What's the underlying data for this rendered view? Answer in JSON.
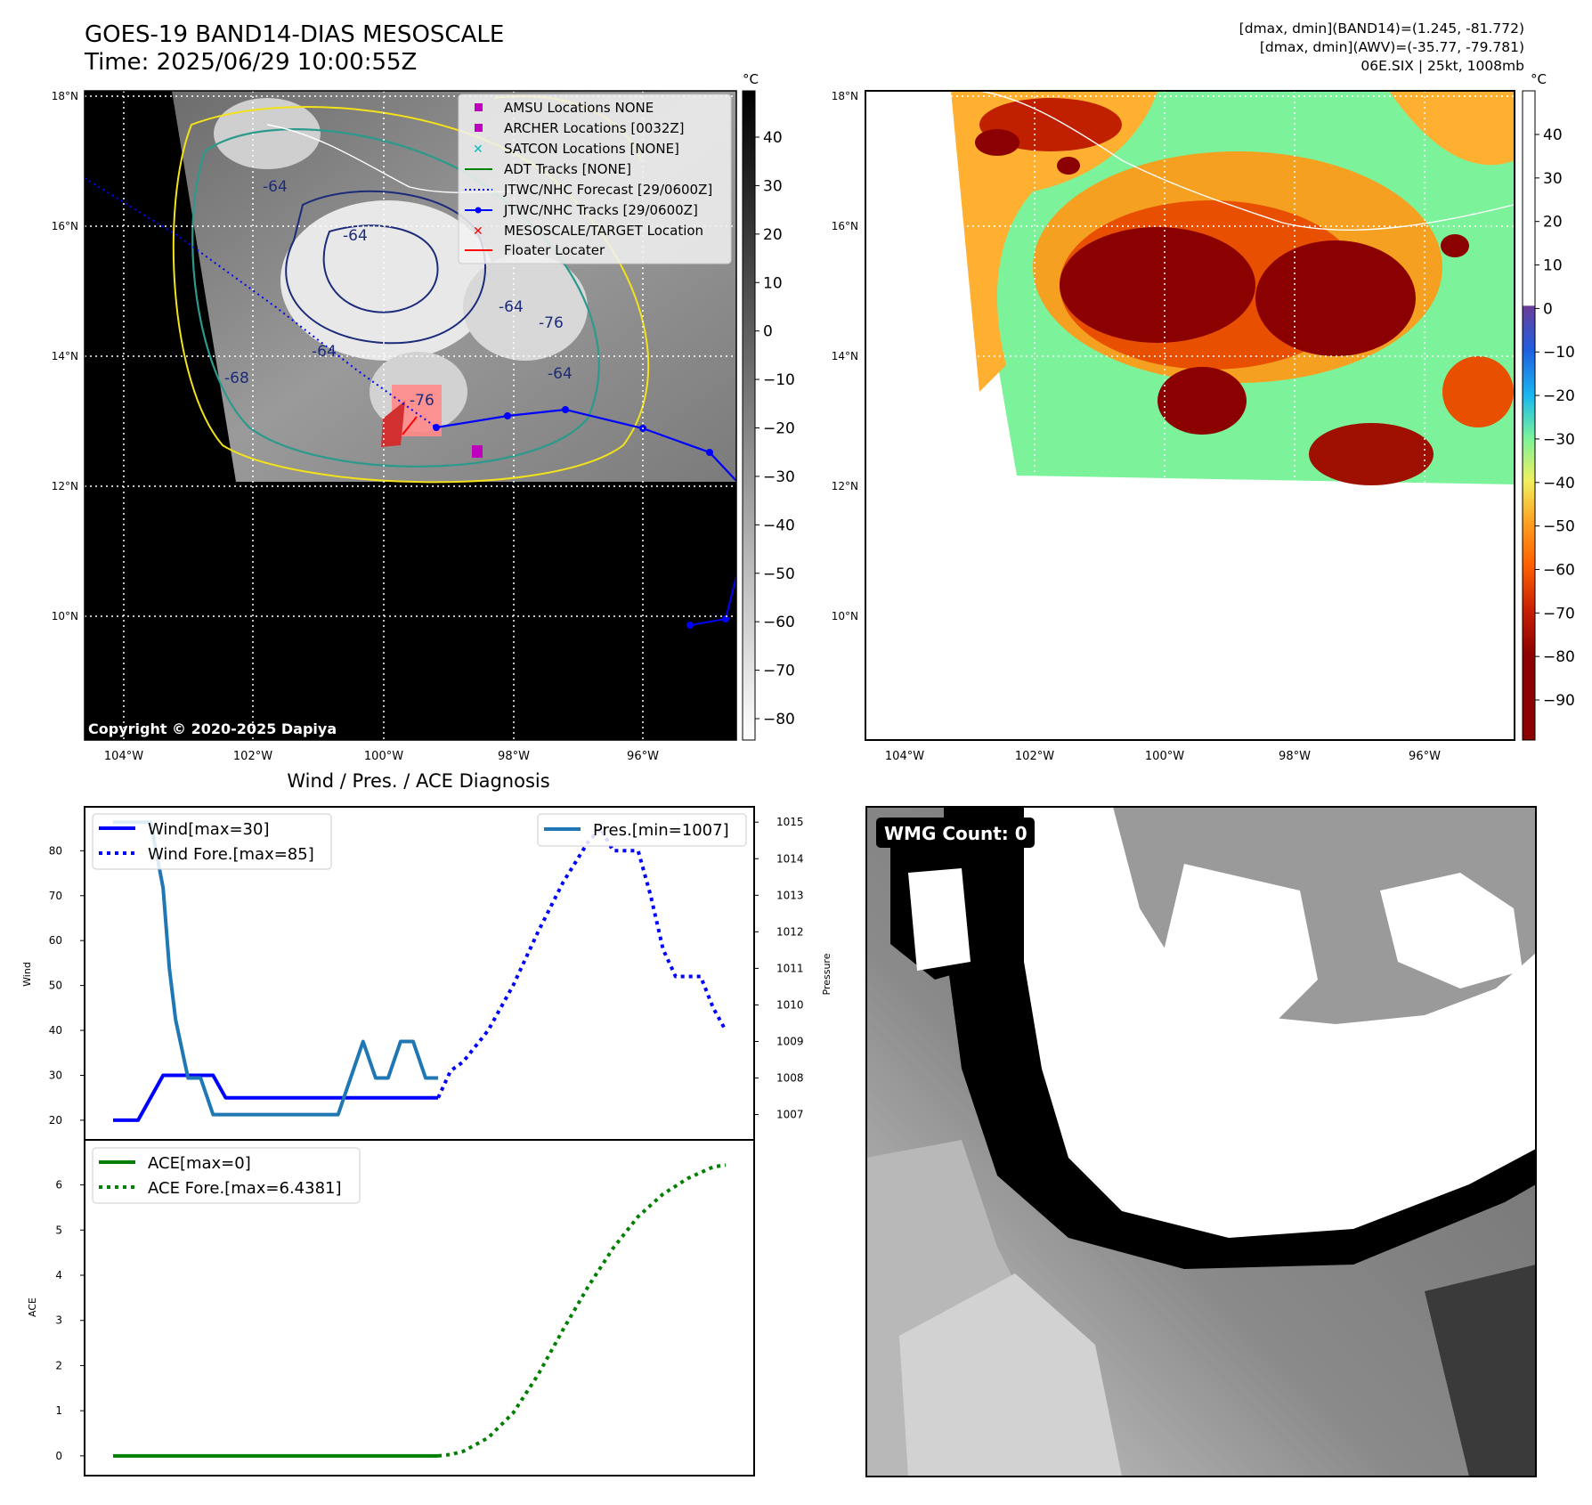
{
  "header": {
    "title_line1": "GOES-19 BAND14-DIAS MESOSCALE",
    "title_line2": "Time: 2025/06/29 10:00:55Z",
    "stats_line1": "[dmax, dmin](BAND14)=(1.245, -81.772)",
    "stats_line2": "[dmax, dmin](AWV)=(-35.77, -79.781)",
    "stats_line3": "06E.SIX | 25kt, 1008mb"
  },
  "maps": {
    "lat_labels": [
      "18°N",
      "16°N",
      "14°N",
      "12°N",
      "10°N"
    ],
    "lon_labels": [
      "104°W",
      "102°W",
      "100°W",
      "98°W",
      "96°W"
    ],
    "copyright": "Copyright © 2020-2025 Dapiya",
    "contour_labels": [
      "-64",
      "-64",
      "-76",
      "-64",
      "-76",
      "-64",
      "-68",
      "-64"
    ],
    "colorbar_unit": "°C",
    "gray_colorbar_ticks": [
      "40",
      "30",
      "20",
      "10",
      "0",
      "−10",
      "−20",
      "−30",
      "−40",
      "−50",
      "−60",
      "−70",
      "−80"
    ],
    "color_colorbar_ticks": [
      "40",
      "30",
      "20",
      "10",
      "0",
      "−10",
      "−20",
      "−30",
      "−40",
      "−50",
      "−60",
      "−70",
      "−80",
      "−90"
    ],
    "legend": [
      {
        "label": "AMSU Locations NONE",
        "marker": "square",
        "color": "#bf00bf"
      },
      {
        "label": "ARCHER Locations [0032Z]",
        "marker": "square",
        "color": "#bf00bf"
      },
      {
        "label": "SATCON Locations [NONE]",
        "marker": "x",
        "color": "#00bfbf"
      },
      {
        "label": "ADT Tracks [NONE]",
        "marker": "line",
        "color": "#008000"
      },
      {
        "label": "JTWC/NHC Forecast [29/0600Z]",
        "marker": "dotted",
        "color": "#0000ff"
      },
      {
        "label": "JTWC/NHC Tracks [29/0600Z]",
        "marker": "line-dot",
        "color": "#0000ff"
      },
      {
        "label": "MESOSCALE/TARGET Location",
        "marker": "x",
        "color": "#ff0000"
      },
      {
        "label": "Floater Locater",
        "marker": "line",
        "color": "#ff0000"
      }
    ]
  },
  "diagnosis": {
    "title": "Wind / Pres. / ACE Diagnosis",
    "wind_ylabel": "Wind",
    "pressure_ylabel": "Pressure",
    "ace_ylabel": "ACE",
    "legend_wind": "Wind[max=30]",
    "legend_wind_fore": "Wind Fore.[max=85]",
    "legend_pres": "Pres.[min=1007]",
    "legend_ace": "ACE[max=0]",
    "legend_ace_fore": "ACE Fore.[max=6.4381]"
  },
  "wmg": {
    "label": "WMG Count: 0"
  },
  "chart_data": [
    {
      "type": "line",
      "title": "Wind / Pres. / ACE Diagnosis",
      "ylabel": "Wind",
      "ylim": [
        18,
        88
      ],
      "y2label": "Pressure",
      "y2lim": [
        1006.6,
        1015.2
      ],
      "series": [
        {
          "name": "Wind[max=30]",
          "style": "solid",
          "color": "#0000ff",
          "axis": "left",
          "points": [
            [
              0,
              20
            ],
            [
              2,
              20
            ],
            [
              4,
              30
            ],
            [
              8,
              30
            ],
            [
              9,
              25
            ],
            [
              26,
              25
            ]
          ]
        },
        {
          "name": "Wind Fore.[max=85]",
          "style": "dotted",
          "color": "#0000ff",
          "axis": "left",
          "points": [
            [
              26,
              25
            ],
            [
              27,
              31
            ],
            [
              28,
              33
            ],
            [
              30,
              40
            ],
            [
              32,
              50
            ],
            [
              34,
              62
            ],
            [
              36,
              73
            ],
            [
              38,
              82
            ],
            [
              39,
              85
            ],
            [
              40,
              80
            ],
            [
              42,
              80
            ],
            [
              43,
              70
            ],
            [
              44,
              58
            ],
            [
              45,
              52
            ],
            [
              47,
              52
            ],
            [
              48,
              45
            ],
            [
              49,
              40
            ]
          ]
        },
        {
          "name": "Pres.[min=1007]",
          "style": "solid",
          "color": "#1f77b4",
          "axis": "right",
          "points": [
            [
              0,
              1015
            ],
            [
              3,
              1015
            ],
            [
              4,
              1013.2
            ],
            [
              4.5,
              1011
            ],
            [
              5,
              1009.6
            ],
            [
              6,
              1008
            ],
            [
              7,
              1008
            ],
            [
              8,
              1007
            ],
            [
              18,
              1007
            ],
            [
              20,
              1009
            ],
            [
              21,
              1008
            ],
            [
              22,
              1008
            ],
            [
              23,
              1009
            ],
            [
              24,
              1009
            ],
            [
              25,
              1008
            ],
            [
              26,
              1008
            ]
          ]
        }
      ],
      "left_ticks": [
        20,
        30,
        40,
        50,
        60,
        70,
        80
      ],
      "right_ticks": [
        1007,
        1008,
        1009,
        1010,
        1011,
        1012,
        1013,
        1014,
        1015
      ]
    },
    {
      "type": "line",
      "ylabel": "ACE",
      "ylim": [
        -0.2,
        6.8
      ],
      "series": [
        {
          "name": "ACE[max=0]",
          "style": "solid",
          "color": "#008000",
          "points": [
            [
              0,
              0
            ],
            [
              26,
              0
            ]
          ]
        },
        {
          "name": "ACE Fore.[max=6.4381]",
          "style": "dotted",
          "color": "#008000",
          "points": [
            [
              26,
              0
            ],
            [
              27,
              0.03
            ],
            [
              28,
              0.1
            ],
            [
              30,
              0.4
            ],
            [
              32,
              0.95
            ],
            [
              34,
              1.8
            ],
            [
              36,
              2.8
            ],
            [
              38,
              3.75
            ],
            [
              40,
              4.6
            ],
            [
              42,
              5.3
            ],
            [
              44,
              5.8
            ],
            [
              46,
              6.15
            ],
            [
              48,
              6.4
            ],
            [
              49,
              6.44
            ]
          ]
        }
      ],
      "ticks": [
        0,
        1,
        2,
        3,
        4,
        5,
        6
      ]
    }
  ]
}
